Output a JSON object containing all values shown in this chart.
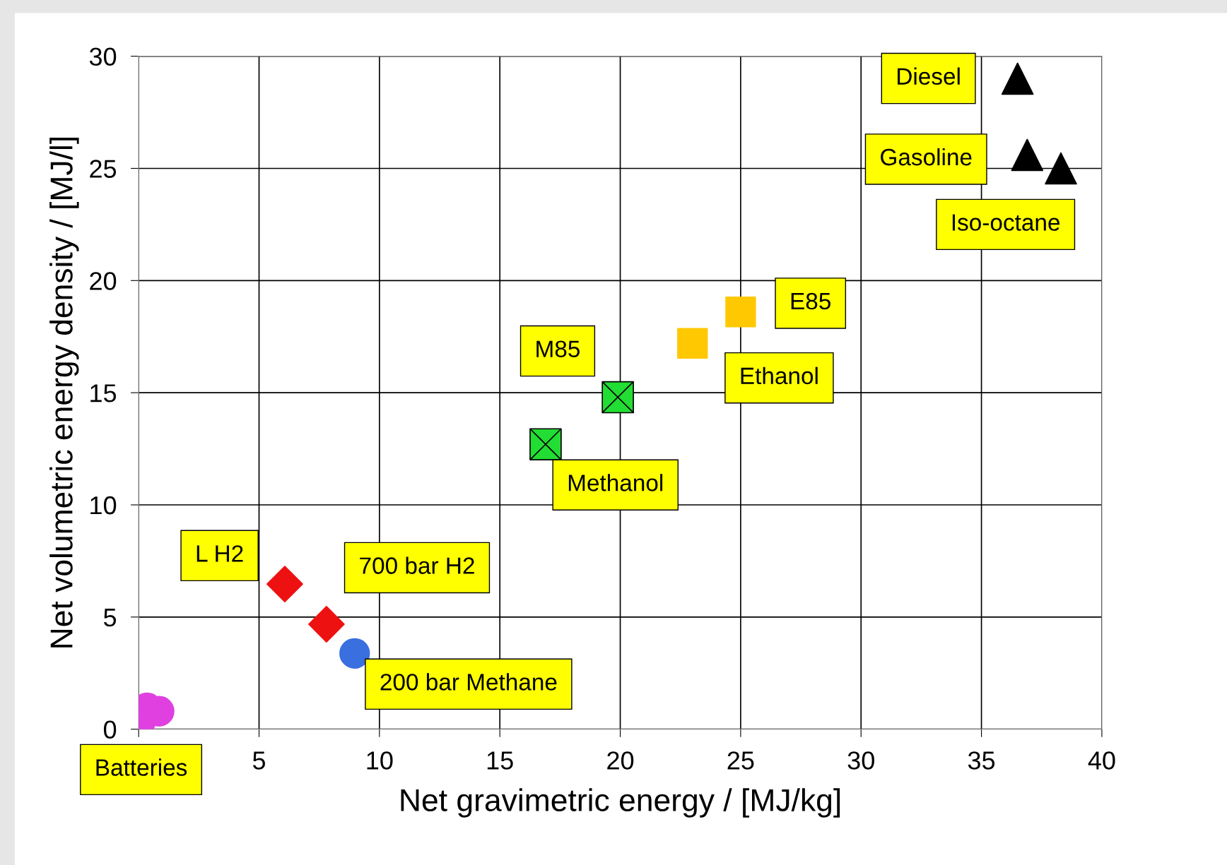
{
  "chart_data": {
    "type": "scatter",
    "xlabel": "Net gravimetric energy / [MJ/kg]",
    "ylabel": "Net volumetric energy density / [MJ/l]",
    "xlim": [
      0,
      40
    ],
    "ylim": [
      0,
      30
    ],
    "xticks": [
      {
        "value": 0,
        "label": null
      },
      5,
      10,
      15,
      20,
      25,
      30,
      35,
      40
    ],
    "yticks": [
      0,
      5,
      10,
      15,
      20,
      25,
      30
    ],
    "grid": true,
    "series": [
      {
        "color": "#e040e0",
        "marker": "circle",
        "x": [
          0.1,
          0.35,
          0.85
        ],
        "values": [
          0.4,
          0.95,
          0.8
        ]
      },
      {
        "color": "#ee1111",
        "marker": "diamond",
        "x": [
          6.07,
          7.8
        ],
        "values": [
          6.47,
          4.68
        ]
      },
      {
        "color": "#3a6fe0",
        "marker": "circle",
        "x": [
          8.97
        ],
        "values": [
          3.38
        ]
      },
      {
        "color": "#22dd33",
        "marker": "cross",
        "x": [
          16.9,
          19.9
        ],
        "values": [
          12.7,
          14.8
        ]
      },
      {
        "color": "#ffc800",
        "marker": "square",
        "x": [
          23.0,
          25.0
        ],
        "values": [
          17.2,
          18.6
        ]
      },
      {
        "color": "#000000",
        "marker": "triangle",
        "x": [
          36.5,
          36.9,
          38.3
        ],
        "values": [
          29.0,
          25.6,
          25.0
        ]
      }
    ],
    "annotations": [
      "Diesel",
      "Gasoline",
      "Iso-octane",
      "E85",
      "Ethanol",
      "M85",
      "Methanol",
      "L H2",
      "700 bar H2",
      "200 bar Methane",
      "Batteries"
    ]
  }
}
